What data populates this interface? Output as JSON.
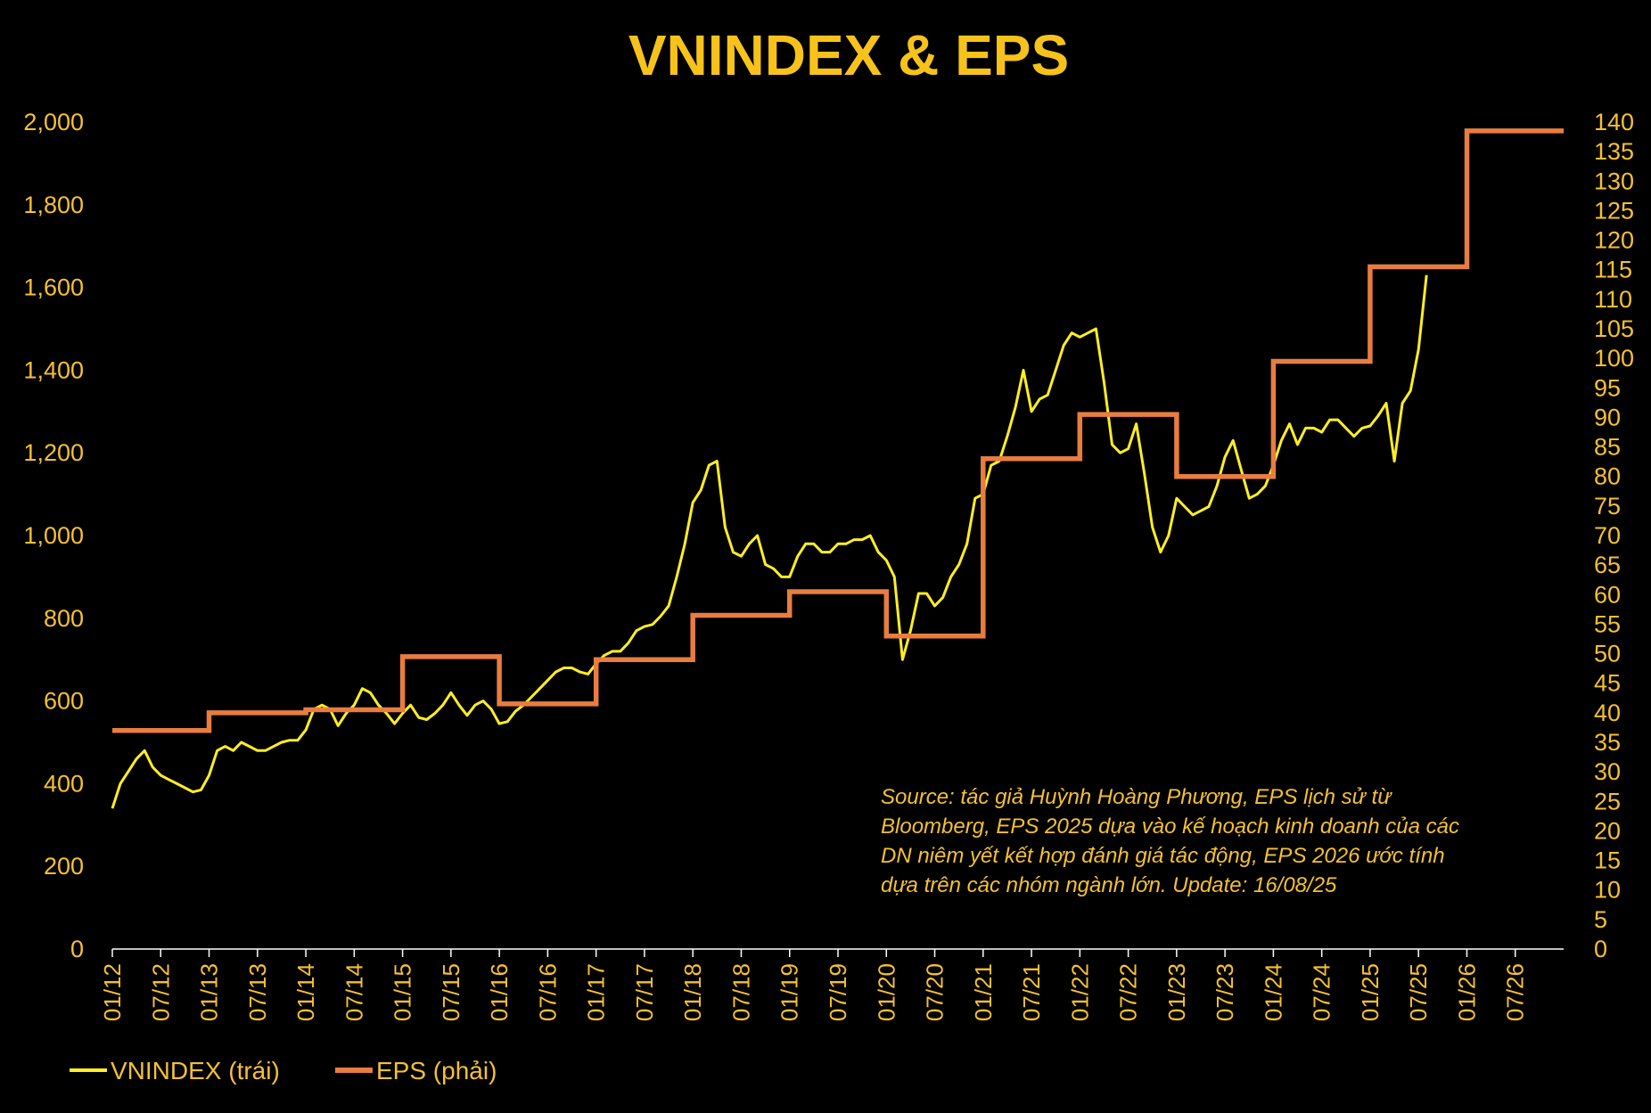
{
  "chart_data": {
    "type": "line",
    "title": "VNINDEX & EPS",
    "colors": {
      "background": "#000000",
      "text": "#f5c033",
      "title": "#f7c21a",
      "vnindex": "#ffee22",
      "eps": "#e87d40",
      "axis": "#ffffff"
    },
    "x_axis": {
      "start": "01/12",
      "end": "01/27",
      "tick_labels": [
        "01/12",
        "07/12",
        "01/13",
        "07/13",
        "01/14",
        "07/14",
        "01/15",
        "07/15",
        "01/16",
        "07/16",
        "01/17",
        "07/17",
        "01/18",
        "07/18",
        "01/19",
        "07/19",
        "01/20",
        "07/20",
        "01/21",
        "07/21",
        "01/22",
        "07/22",
        "01/23",
        "07/23",
        "01/24",
        "07/24",
        "01/25",
        "07/25",
        "01/26",
        "07/26"
      ]
    },
    "y_left": {
      "ylim": [
        0,
        2000
      ],
      "tick_labels": [
        "0",
        "200",
        "400",
        "600",
        "800",
        "1,000",
        "1,200",
        "1,400",
        "1,600",
        "1,800",
        "2,000"
      ]
    },
    "y_right": {
      "ylim": [
        0,
        140
      ],
      "tick_labels": [
        "0",
        "5",
        "10",
        "15",
        "20",
        "25",
        "30",
        "35",
        "40",
        "45",
        "50",
        "55",
        "60",
        "65",
        "70",
        "75",
        "80",
        "85",
        "90",
        "95",
        "100",
        "105",
        "110",
        "115",
        "120",
        "125",
        "130",
        "135",
        "140"
      ]
    },
    "series": [
      {
        "name": "VNINDEX (trái)",
        "axis": "left",
        "points": [
          [
            "01/12",
            340
          ],
          [
            "02/12",
            400
          ],
          [
            "03/12",
            430
          ],
          [
            "04/12",
            460
          ],
          [
            "05/12",
            480
          ],
          [
            "06/12",
            440
          ],
          [
            "07/12",
            420
          ],
          [
            "08/12",
            410
          ],
          [
            "09/12",
            400
          ],
          [
            "10/12",
            390
          ],
          [
            "11/12",
            380
          ],
          [
            "12/12",
            385
          ],
          [
            "01/13",
            420
          ],
          [
            "02/13",
            480
          ],
          [
            "03/13",
            490
          ],
          [
            "04/13",
            480
          ],
          [
            "05/13",
            500
          ],
          [
            "06/13",
            490
          ],
          [
            "07/13",
            480
          ],
          [
            "08/13",
            480
          ],
          [
            "09/13",
            490
          ],
          [
            "10/13",
            500
          ],
          [
            "11/13",
            505
          ],
          [
            "12/13",
            505
          ],
          [
            "01/14",
            530
          ],
          [
            "02/14",
            580
          ],
          [
            "03/14",
            590
          ],
          [
            "04/14",
            580
          ],
          [
            "05/14",
            540
          ],
          [
            "06/14",
            570
          ],
          [
            "07/14",
            590
          ],
          [
            "08/14",
            630
          ],
          [
            "09/14",
            620
          ],
          [
            "10/14",
            590
          ],
          [
            "11/14",
            570
          ],
          [
            "12/14",
            545
          ],
          [
            "01/15",
            570
          ],
          [
            "02/15",
            590
          ],
          [
            "03/15",
            560
          ],
          [
            "04/15",
            555
          ],
          [
            "05/15",
            570
          ],
          [
            "06/15",
            590
          ],
          [
            "07/15",
            620
          ],
          [
            "08/15",
            590
          ],
          [
            "09/15",
            565
          ],
          [
            "10/15",
            590
          ],
          [
            "11/15",
            600
          ],
          [
            "12/15",
            580
          ],
          [
            "01/16",
            545
          ],
          [
            "02/16",
            550
          ],
          [
            "03/16",
            575
          ],
          [
            "04/16",
            590
          ],
          [
            "05/16",
            610
          ],
          [
            "06/16",
            630
          ],
          [
            "07/16",
            650
          ],
          [
            "08/16",
            670
          ],
          [
            "09/16",
            680
          ],
          [
            "10/16",
            680
          ],
          [
            "11/16",
            670
          ],
          [
            "12/16",
            665
          ],
          [
            "01/17",
            690
          ],
          [
            "02/17",
            710
          ],
          [
            "03/17",
            720
          ],
          [
            "04/17",
            720
          ],
          [
            "05/17",
            740
          ],
          [
            "06/17",
            770
          ],
          [
            "07/17",
            780
          ],
          [
            "08/17",
            785
          ],
          [
            "09/17",
            805
          ],
          [
            "10/17",
            830
          ],
          [
            "11/17",
            900
          ],
          [
            "12/17",
            980
          ],
          [
            "01/18",
            1080
          ],
          [
            "02/18",
            1110
          ],
          [
            "03/18",
            1170
          ],
          [
            "04/18",
            1180
          ],
          [
            "05/18",
            1020
          ],
          [
            "06/18",
            960
          ],
          [
            "07/18",
            950
          ],
          [
            "08/18",
            980
          ],
          [
            "09/18",
            1000
          ],
          [
            "10/18",
            930
          ],
          [
            "11/18",
            920
          ],
          [
            "12/18",
            900
          ],
          [
            "01/19",
            900
          ],
          [
            "02/19",
            950
          ],
          [
            "03/19",
            980
          ],
          [
            "04/19",
            980
          ],
          [
            "05/19",
            960
          ],
          [
            "06/19",
            960
          ],
          [
            "07/19",
            980
          ],
          [
            "08/19",
            980
          ],
          [
            "09/19",
            990
          ],
          [
            "10/19",
            990
          ],
          [
            "11/19",
            1000
          ],
          [
            "12/19",
            960
          ],
          [
            "01/20",
            940
          ],
          [
            "02/20",
            900
          ],
          [
            "03/20",
            700
          ],
          [
            "04/20",
            770
          ],
          [
            "05/20",
            860
          ],
          [
            "06/20",
            860
          ],
          [
            "07/20",
            830
          ],
          [
            "08/20",
            850
          ],
          [
            "09/20",
            900
          ],
          [
            "10/20",
            930
          ],
          [
            "11/20",
            980
          ],
          [
            "12/20",
            1090
          ],
          [
            "01/21",
            1100
          ],
          [
            "02/21",
            1170
          ],
          [
            "03/21",
            1180
          ],
          [
            "04/21",
            1240
          ],
          [
            "05/21",
            1310
          ],
          [
            "06/21",
            1400
          ],
          [
            "07/21",
            1300
          ],
          [
            "08/21",
            1330
          ],
          [
            "09/21",
            1340
          ],
          [
            "10/21",
            1400
          ],
          [
            "11/21",
            1460
          ],
          [
            "12/21",
            1490
          ],
          [
            "01/22",
            1480
          ],
          [
            "02/22",
            1490
          ],
          [
            "03/22",
            1500
          ],
          [
            "04/22",
            1370
          ],
          [
            "05/22",
            1220
          ],
          [
            "06/22",
            1200
          ],
          [
            "07/22",
            1210
          ],
          [
            "08/22",
            1270
          ],
          [
            "09/22",
            1150
          ],
          [
            "10/22",
            1020
          ],
          [
            "11/22",
            960
          ],
          [
            "12/22",
            1000
          ],
          [
            "01/23",
            1090
          ],
          [
            "02/23",
            1070
          ],
          [
            "03/23",
            1050
          ],
          [
            "04/23",
            1060
          ],
          [
            "05/23",
            1070
          ],
          [
            "06/23",
            1120
          ],
          [
            "07/23",
            1190
          ],
          [
            "08/23",
            1230
          ],
          [
            "09/23",
            1160
          ],
          [
            "10/23",
            1090
          ],
          [
            "11/23",
            1100
          ],
          [
            "12/23",
            1120
          ],
          [
            "01/24",
            1170
          ],
          [
            "02/24",
            1230
          ],
          [
            "03/24",
            1270
          ],
          [
            "04/24",
            1220
          ],
          [
            "05/24",
            1260
          ],
          [
            "06/24",
            1260
          ],
          [
            "07/24",
            1250
          ],
          [
            "08/24",
            1280
          ],
          [
            "09/24",
            1280
          ],
          [
            "10/24",
            1260
          ],
          [
            "11/24",
            1240
          ],
          [
            "12/24",
            1260
          ],
          [
            "01/25",
            1265
          ],
          [
            "02/25",
            1290
          ],
          [
            "03/25",
            1320
          ],
          [
            "04/25",
            1180
          ],
          [
            "05/25",
            1320
          ],
          [
            "06/25",
            1350
          ],
          [
            "07/25",
            1450
          ],
          [
            "08/25",
            1630
          ]
        ]
      },
      {
        "name": "EPS (phải)",
        "axis": "right",
        "step": true,
        "points": [
          [
            "01/12",
            37
          ],
          [
            "01/13",
            40
          ],
          [
            "01/14",
            40.5
          ],
          [
            "01/15",
            49.5
          ],
          [
            "01/16",
            41.5
          ],
          [
            "01/17",
            49
          ],
          [
            "01/18",
            56.5
          ],
          [
            "01/19",
            60.5
          ],
          [
            "01/20",
            53
          ],
          [
            "01/21",
            83
          ],
          [
            "01/22",
            90.5
          ],
          [
            "01/23",
            80
          ],
          [
            "01/24",
            99.5
          ],
          [
            "01/25",
            115.5
          ],
          [
            "01/26",
            138.5
          ],
          [
            "12/26",
            138.5
          ]
        ]
      }
    ],
    "legend": {
      "placement": "bottom-left",
      "items": [
        "VNINDEX (trái)",
        "EPS (phải)"
      ]
    },
    "grid": false,
    "annotation": [
      "Source: tác giả Huỳnh Hoàng Phương, EPS lịch sử từ",
      "Bloomberg, EPS 2025 dựa vào kế hoạch kinh doanh của các",
      "DN niêm yết kết hợp đánh giá tác động, EPS 2026 ước tính",
      "dựa trên các nhóm ngành lớn. Update: 16/08/25"
    ]
  }
}
